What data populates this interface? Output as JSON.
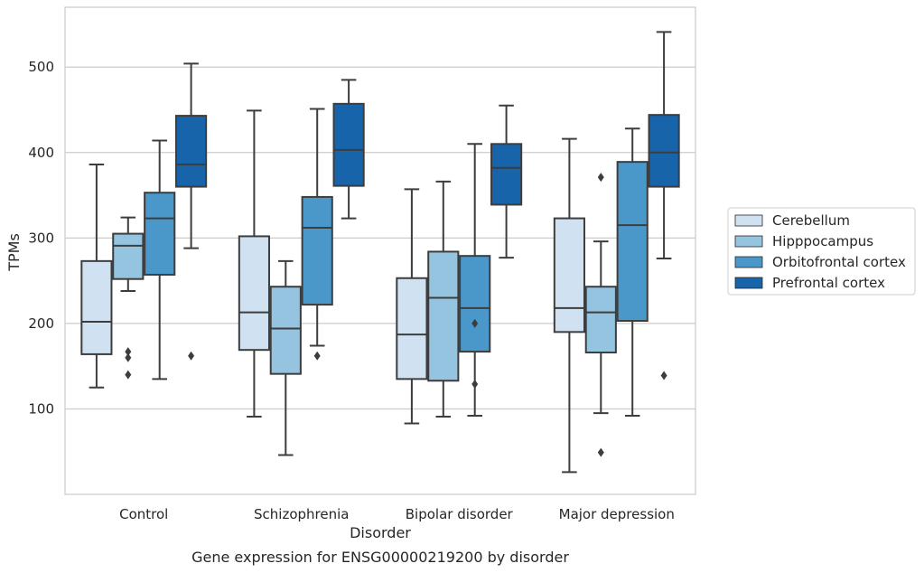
{
  "chart_data": {
    "type": "box",
    "caption": "Gene expression for ENSG00000219200 by disorder",
    "xlabel": "Disorder",
    "ylabel": "TPMs",
    "ylim": [
      0,
      570
    ],
    "yticks": [
      100,
      200,
      300,
      400,
      500
    ],
    "grid": "horizontal",
    "legend_position": "right",
    "categories": [
      "Control",
      "Schizophrenia",
      "Bipolar disorder",
      "Major depression"
    ],
    "series": [
      {
        "name": "Cerebellum",
        "color": "#d0e1f2",
        "boxes": [
          {
            "whislo": 125,
            "q1": 164,
            "med": 202,
            "q3": 273,
            "whishi": 386,
            "fliers": []
          },
          {
            "whislo": 91,
            "q1": 169,
            "med": 213,
            "q3": 302,
            "whishi": 449,
            "fliers": []
          },
          {
            "whislo": 83,
            "q1": 135,
            "med": 187,
            "q3": 253,
            "whishi": 357,
            "fliers": []
          },
          {
            "whislo": 26,
            "q1": 190,
            "med": 218,
            "q3": 323,
            "whishi": 416,
            "fliers": []
          }
        ]
      },
      {
        "name": "Hipppocampus",
        "color": "#94c4df",
        "boxes": [
          {
            "whislo": 238,
            "q1": 252,
            "med": 291,
            "q3": 305,
            "whishi": 324,
            "fliers": [
              140,
              160,
              167
            ]
          },
          {
            "whislo": 46,
            "q1": 141,
            "med": 194,
            "q3": 243,
            "whishi": 273,
            "fliers": []
          },
          {
            "whislo": 91,
            "q1": 133,
            "med": 230,
            "q3": 284,
            "whishi": 366,
            "fliers": []
          },
          {
            "whislo": 95,
            "q1": 166,
            "med": 213,
            "q3": 243,
            "whishi": 296,
            "fliers": [
              49,
              371
            ]
          }
        ]
      },
      {
        "name": "Orbitofrontal cortex",
        "color": "#4a98c9",
        "boxes": [
          {
            "whislo": 135,
            "q1": 257,
            "med": 323,
            "q3": 353,
            "whishi": 414,
            "fliers": []
          },
          {
            "whislo": 174,
            "q1": 222,
            "med": 312,
            "q3": 348,
            "whishi": 451,
            "fliers": [
              162
            ]
          },
          {
            "whislo": 92,
            "q1": 167,
            "med": 218,
            "q3": 279,
            "whishi": 410,
            "fliers": [
              129,
              200
            ]
          },
          {
            "whislo": 92,
            "q1": 203,
            "med": 315,
            "q3": 389,
            "whishi": 428,
            "fliers": []
          }
        ]
      },
      {
        "name": "Prefrontal cortex",
        "color": "#1764ab",
        "boxes": [
          {
            "whislo": 288,
            "q1": 360,
            "med": 386,
            "q3": 443,
            "whishi": 504,
            "fliers": [
              162
            ]
          },
          {
            "whislo": 323,
            "q1": 361,
            "med": 403,
            "q3": 457,
            "whishi": 485,
            "fliers": []
          },
          {
            "whislo": 277,
            "q1": 339,
            "med": 382,
            "q3": 410,
            "whishi": 455,
            "fliers": []
          },
          {
            "whislo": 276,
            "q1": 360,
            "med": 400,
            "q3": 444,
            "whishi": 541,
            "fliers": [
              139
            ]
          }
        ]
      }
    ]
  }
}
